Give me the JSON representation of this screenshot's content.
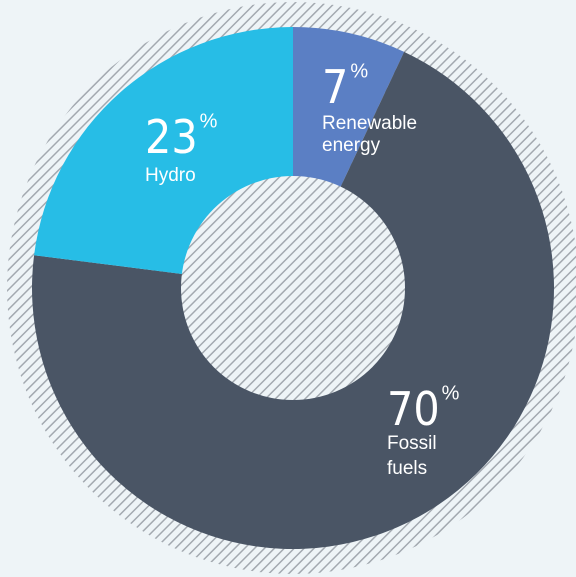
{
  "chart_data": {
    "type": "pie",
    "title": "",
    "slices": [
      {
        "name": "Renewable energy",
        "label_lines": [
          "Renewable",
          "energy"
        ],
        "value": 7,
        "value_text": "7",
        "unit": "%",
        "color": "#5b7fc4"
      },
      {
        "name": "Fossil fuels",
        "label_lines": [
          "Fossil",
          "fuels"
        ],
        "value": 70,
        "value_text": "70",
        "unit": "%",
        "color": "#4a5565"
      },
      {
        "name": "Hydro",
        "label_lines": [
          "Hydro"
        ],
        "value": 23,
        "value_text": "23",
        "unit": "%",
        "color": "#27bde6"
      }
    ],
    "start_angle_deg": 0,
    "direction": "clockwise",
    "donut": true,
    "background_color": "#eef4f7",
    "hatch_color": "#a3a9b0"
  }
}
